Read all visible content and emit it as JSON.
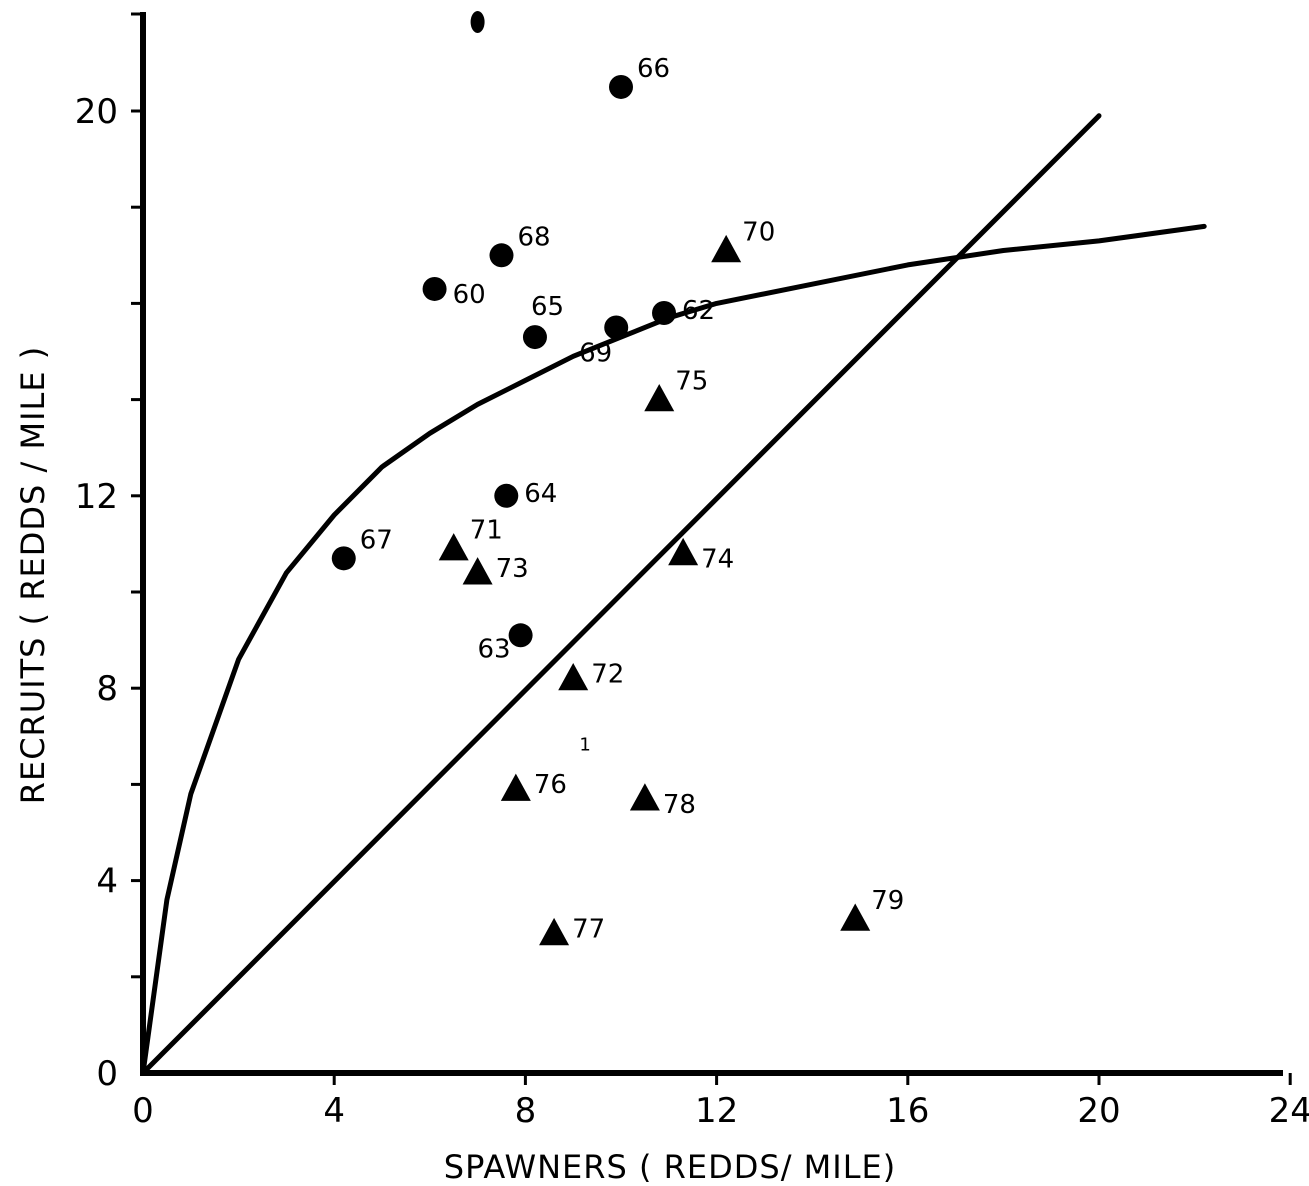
{
  "chart_data": {
    "type": "scatter",
    "title": "",
    "xlabel": "SPAWNERS ( REDDS/ MILE)",
    "ylabel": "RECRUITS ( REDDS / MILE )",
    "xlim": [
      0,
      24
    ],
    "ylim": [
      0,
      22
    ],
    "x_ticks": [
      0,
      4,
      8,
      12,
      16,
      20,
      24
    ],
    "y_ticks": [
      0,
      4,
      8,
      12,
      20
    ],
    "y_minor_ticks": [
      2,
      6,
      10,
      14,
      16,
      18
    ],
    "grid": false,
    "legend": "none",
    "series": [
      {
        "marker": "circle",
        "points": [
          {
            "x": 6.1,
            "y": 16.3,
            "label": "60"
          },
          {
            "x": 10.9,
            "y": 15.8,
            "label": "62"
          },
          {
            "x": 7.9,
            "y": 9.1,
            "label": "63"
          },
          {
            "x": 7.6,
            "y": 12.0,
            "label": "64"
          },
          {
            "x": 8.2,
            "y": 15.3,
            "label": "65"
          },
          {
            "x": 10.0,
            "y": 20.5,
            "label": "66"
          },
          {
            "x": 4.2,
            "y": 10.7,
            "label": "67"
          },
          {
            "x": 7.5,
            "y": 17.0,
            "label": "68"
          },
          {
            "x": 9.9,
            "y": 15.5,
            "label": "69"
          },
          {
            "x": 7.0,
            "y": 22.8,
            "label": ""
          }
        ]
      },
      {
        "marker": "triangle",
        "points": [
          {
            "x": 12.2,
            "y": 17.1,
            "label": "70"
          },
          {
            "x": 6.5,
            "y": 10.9,
            "label": "71"
          },
          {
            "x": 9.0,
            "y": 8.2,
            "label": "72"
          },
          {
            "x": 7.0,
            "y": 10.4,
            "label": "73"
          },
          {
            "x": 11.3,
            "y": 10.8,
            "label": "74"
          },
          {
            "x": 10.8,
            "y": 14.0,
            "label": "75"
          },
          {
            "x": 7.8,
            "y": 5.9,
            "label": "76"
          },
          {
            "x": 8.6,
            "y": 2.9,
            "label": "77"
          },
          {
            "x": 10.5,
            "y": 5.7,
            "label": "78"
          },
          {
            "x": 14.9,
            "y": 3.2,
            "label": "79"
          }
        ]
      }
    ],
    "lines": [
      {
        "kind": "replacement",
        "points": [
          [
            0,
            0
          ],
          [
            20,
            19.9
          ]
        ]
      },
      {
        "kind": "recruitment-curve",
        "points": [
          [
            0,
            0
          ],
          [
            0.5,
            3.6
          ],
          [
            1,
            5.8
          ],
          [
            2,
            8.6
          ],
          [
            3,
            10.4
          ],
          [
            4,
            11.6
          ],
          [
            5,
            12.6
          ],
          [
            6,
            13.3
          ],
          [
            7,
            13.9
          ],
          [
            8,
            14.4
          ],
          [
            9,
            14.9
          ],
          [
            10,
            15.3
          ],
          [
            11,
            15.7
          ],
          [
            12,
            16.0
          ],
          [
            14,
            16.4
          ],
          [
            16,
            16.8
          ],
          [
            18,
            17.1
          ],
          [
            20,
            17.3
          ],
          [
            22.2,
            17.6
          ]
        ]
      }
    ],
    "annotations": [
      {
        "text": "1",
        "x": 9.25,
        "y": 6.7
      }
    ]
  }
}
